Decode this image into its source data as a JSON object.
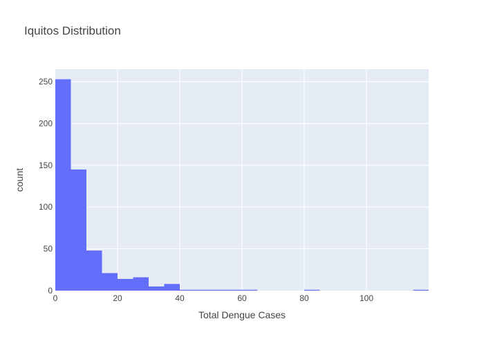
{
  "chart_data": {
    "type": "bar",
    "title": "Iquitos Distribution",
    "xlabel": "Total Dengue Cases",
    "ylabel": "count",
    "bin_width": 5,
    "bins": [
      {
        "x0": 0,
        "x1": 5,
        "count": 253
      },
      {
        "x0": 5,
        "x1": 10,
        "count": 145
      },
      {
        "x0": 10,
        "x1": 15,
        "count": 48
      },
      {
        "x0": 15,
        "x1": 20,
        "count": 21
      },
      {
        "x0": 20,
        "x1": 25,
        "count": 14
      },
      {
        "x0": 25,
        "x1": 30,
        "count": 16
      },
      {
        "x0": 30,
        "x1": 35,
        "count": 5
      },
      {
        "x0": 35,
        "x1": 40,
        "count": 8
      },
      {
        "x0": 40,
        "x1": 45,
        "count": 1
      },
      {
        "x0": 45,
        "x1": 50,
        "count": 1
      },
      {
        "x0": 50,
        "x1": 55,
        "count": 1
      },
      {
        "x0": 55,
        "x1": 60,
        "count": 1
      },
      {
        "x0": 60,
        "x1": 65,
        "count": 1
      },
      {
        "x0": 80,
        "x1": 85,
        "count": 1
      },
      {
        "x0": 115,
        "x1": 120,
        "count": 1
      }
    ],
    "xlim": [
      0,
      120
    ],
    "ylim": [
      0,
      265
    ],
    "xticks": [
      0,
      20,
      40,
      60,
      80,
      100
    ],
    "yticks": [
      0,
      50,
      100,
      150,
      200,
      250
    ],
    "grid": true,
    "bar_color": "#636efa",
    "plot_bg": "#e5ecf6",
    "grid_color": "#ffffff"
  }
}
